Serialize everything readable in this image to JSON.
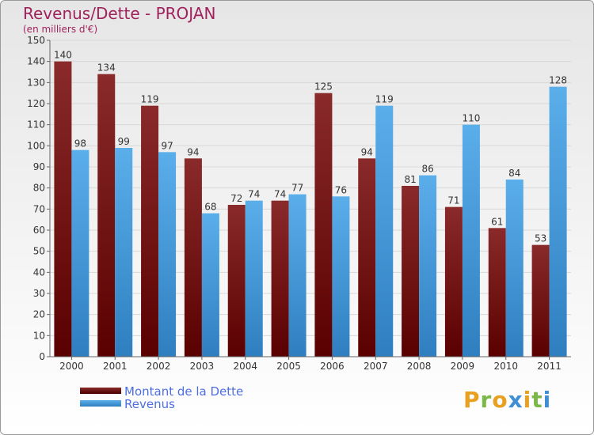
{
  "title": "Revenus/Dette - PROJAN",
  "subtitle": "(en milliers d'€)",
  "colors": {
    "dette": "#7a1a1a",
    "revenus": "#3f9ad9",
    "title": "#a0225c",
    "legend_text": "#4d6fe0"
  },
  "legend": {
    "dette_label": "Montant de la Dette",
    "revenus_label": "Revenus"
  },
  "logo": {
    "text": "Proxiti"
  },
  "chart_data": {
    "type": "bar",
    "title": "Revenus/Dette - PROJAN",
    "subtitle": "(en milliers d'€)",
    "categories": [
      "2000",
      "2001",
      "2002",
      "2003",
      "2004",
      "2005",
      "2006",
      "2007",
      "2008",
      "2009",
      "2010",
      "2011"
    ],
    "series": [
      {
        "name": "Montant de la Dette",
        "values": [
          140,
          134,
          119,
          94,
          72,
          74,
          125,
          94,
          81,
          71,
          61,
          53
        ]
      },
      {
        "name": "Revenus",
        "values": [
          98,
          99,
          97,
          68,
          74,
          77,
          76,
          119,
          86,
          110,
          84,
          128
        ]
      }
    ],
    "ylim": [
      0,
      150
    ],
    "yticks": [
      0,
      10,
      20,
      30,
      40,
      50,
      60,
      70,
      80,
      90,
      100,
      110,
      120,
      130,
      140,
      150
    ],
    "grid": true,
    "legend": "bottom-left"
  }
}
